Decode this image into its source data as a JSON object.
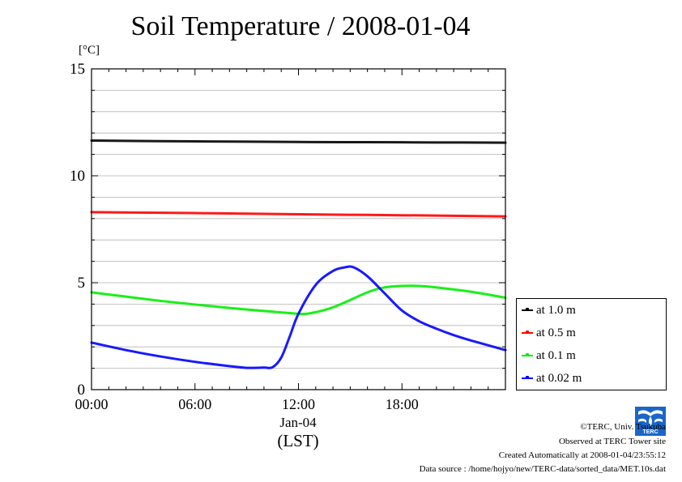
{
  "chart_data": {
    "type": "line",
    "title": "Soil Temperature / 2008-01-04",
    "ylabel": "[°C]",
    "xlabel": "(LST)",
    "xdate_label": "Jan-04",
    "ylim": [
      0,
      15
    ],
    "xlim_hours": [
      0,
      24
    ],
    "y_ticks": [
      0,
      5,
      10,
      15
    ],
    "x_ticks": [
      {
        "hour": 0,
        "label": "00:00"
      },
      {
        "hour": 6,
        "label": "06:00"
      },
      {
        "hour": 12,
        "label": "12:00"
      },
      {
        "hour": 18,
        "label": "18:00"
      }
    ],
    "grid": true,
    "legend_position": "right-bottom, outside plot",
    "series": [
      {
        "name": "at 1.0 m",
        "color": "#000000",
        "x": [
          0,
          4,
          8,
          12,
          16,
          20,
          24
        ],
        "y": [
          11.65,
          11.62,
          11.6,
          11.58,
          11.57,
          11.56,
          11.55
        ]
      },
      {
        "name": "at 0.5 m",
        "color": "#ff0000",
        "x": [
          0,
          4,
          8,
          12,
          16,
          20,
          24
        ],
        "y": [
          8.3,
          8.27,
          8.24,
          8.2,
          8.17,
          8.14,
          8.1
        ]
      },
      {
        "name": "at 0.1 m",
        "color": "#00ee00",
        "x": [
          0,
          2,
          4,
          6,
          8,
          10,
          11.5,
          12.5,
          14,
          16,
          17,
          18,
          19,
          20,
          22,
          24
        ],
        "y": [
          4.55,
          4.35,
          4.15,
          3.98,
          3.82,
          3.68,
          3.58,
          3.55,
          3.85,
          4.55,
          4.78,
          4.85,
          4.85,
          4.78,
          4.58,
          4.3
        ]
      },
      {
        "name": "at 0.02 m",
        "color": "#0000ff",
        "x": [
          0,
          2,
          4,
          6,
          8,
          9,
          10,
          10.5,
          11,
          11.5,
          12,
          13,
          14,
          14.7,
          15.2,
          16,
          17,
          18,
          19,
          20,
          21,
          22,
          24
        ],
        "y": [
          2.2,
          1.85,
          1.55,
          1.3,
          1.1,
          1.02,
          1.03,
          1.05,
          1.5,
          2.5,
          3.55,
          4.9,
          5.55,
          5.72,
          5.72,
          5.3,
          4.5,
          3.7,
          3.2,
          2.85,
          2.55,
          2.3,
          1.85
        ]
      }
    ]
  },
  "credits": {
    "copyright": "©TERC, Univ. Tsukuba",
    "observed": "Observed at TERC Tower site",
    "created": "Created Automatically at 2008-01-04/23:55:12",
    "source": "Data source : /home/hojyo/new/TERC-data/sorted_data/MET.10s.dat"
  },
  "logo": {
    "name": "terc-logo",
    "text": "TERC",
    "color": "#1a66c8"
  }
}
